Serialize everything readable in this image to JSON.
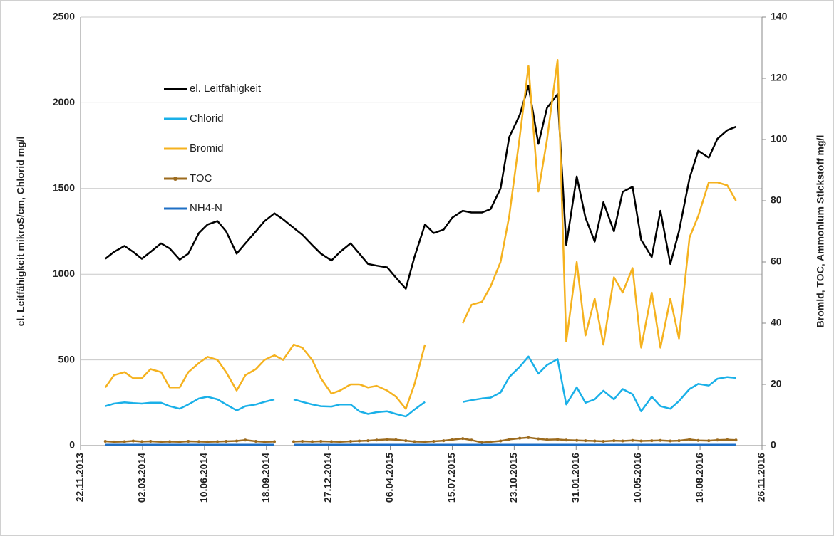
{
  "chart_data": {
    "type": "line",
    "ylabel": "el. Leitfähigkeit mikroS/cm, Chlorid mg/l",
    "y2label": "Bromid, TOC, Ammonium Stickstoff mg/l",
    "x": [
      "01.01.2014",
      "15.01.2014",
      "01.02.2014",
      "15.02.2014",
      "01.03.2014",
      "15.03.2014",
      "01.04.2014",
      "15.04.2014",
      "01.05.2014",
      "15.05.2014",
      "01.06.2014",
      "15.06.2014",
      "01.07.2014",
      "15.07.2014",
      "01.08.2014",
      "15.08.2014",
      "01.09.2014",
      "15.09.2014",
      "01.10.2014",
      "15.10.2014",
      "01.11.2014",
      "15.11.2014",
      "01.12.2014",
      "15.12.2014",
      "01.01.2015",
      "15.01.2015",
      "01.02.2015",
      "15.02.2015",
      "01.03.2015",
      "15.03.2015",
      "01.04.2015",
      "15.04.2015",
      "01.05.2015",
      "15.05.2015",
      "01.06.2015",
      "15.06.2015",
      "01.07.2015",
      "15.07.2015",
      "01.08.2015",
      "15.08.2015",
      "01.09.2015",
      "15.09.2015",
      "01.10.2015",
      "15.10.2015",
      "01.11.2015",
      "15.11.2015",
      "01.12.2015",
      "15.12.2015",
      "01.01.2016",
      "15.01.2016",
      "01.02.2016",
      "15.02.2016",
      "01.03.2016",
      "15.03.2016",
      "01.04.2016",
      "15.04.2016",
      "01.05.2016",
      "15.05.2016",
      "01.06.2016",
      "15.06.2016",
      "01.07.2016",
      "15.07.2016",
      "01.08.2016",
      "15.08.2016",
      "01.09.2016",
      "15.09.2016",
      "01.10.2016",
      "15.10.2016"
    ],
    "series": [
      {
        "name": "el. Leitfähigkeit",
        "color": "#000000",
        "axis": "y",
        "values": [
          1090,
          1130,
          1165,
          1130,
          1090,
          1130,
          1180,
          1150,
          1085,
          1120,
          1240,
          1290,
          1310,
          1250,
          1120,
          1180,
          1250,
          1310,
          1355,
          1320,
          1270,
          1230,
          1170,
          1120,
          1080,
          1130,
          1180,
          1120,
          1060,
          1050,
          1040,
          980,
          915,
          1100,
          1290,
          1240,
          1260,
          1330,
          1370,
          1360,
          1360,
          1380,
          1500,
          1800,
          1930,
          2100,
          1760,
          1970,
          2050,
          1170,
          1570,
          1330,
          1190,
          1420,
          1250,
          1480,
          1510,
          1200,
          1100,
          1370,
          1060,
          1250,
          1560,
          1720,
          1680,
          1790,
          1840,
          1860
        ]
      },
      {
        "name": "Chlorid",
        "color": "#1ab0e8",
        "axis": "y",
        "values": [
          230,
          245,
          252,
          248,
          245,
          250,
          250,
          230,
          215,
          240,
          275,
          285,
          270,
          240,
          205,
          230,
          240,
          255,
          270,
          null,
          270,
          255,
          240,
          230,
          228,
          240,
          240,
          200,
          185,
          195,
          200,
          185,
          170,
          210,
          255,
          null,
          null,
          null,
          255,
          265,
          275,
          280,
          310,
          400,
          460,
          520,
          420,
          470,
          505,
          240,
          340,
          250,
          270,
          320,
          270,
          330,
          300,
          200,
          285,
          230,
          215,
          260,
          330,
          360,
          350,
          390,
          400,
          395
        ]
      },
      {
        "name": "Bromid",
        "color": "#f5b21f",
        "axis": "y2",
        "values": [
          19,
          23,
          24,
          22,
          22,
          25,
          24,
          19,
          19,
          24,
          27,
          29,
          28,
          24,
          18,
          23,
          25,
          28,
          29.5,
          28,
          33,
          32,
          28,
          22,
          17,
          18,
          20,
          20,
          19,
          19.5,
          18,
          16,
          12,
          20,
          33,
          null,
          null,
          null,
          40,
          46,
          47,
          52,
          60,
          75,
          101,
          124,
          83,
          100,
          126,
          34,
          60,
          36,
          48,
          33,
          55,
          50,
          58,
          32,
          50,
          32,
          48,
          35,
          68,
          75,
          86,
          86,
          85,
          80
        ]
      },
      {
        "name": "TOC",
        "color": "#9c6b1e",
        "axis": "y2",
        "marker": true,
        "values": [
          1.4,
          1.2,
          1.3,
          1.5,
          1.3,
          1.4,
          1.2,
          1.3,
          1.2,
          1.4,
          1.3,
          1.2,
          1.3,
          1.4,
          1.5,
          1.8,
          1.4,
          1.2,
          1.3,
          null,
          1.3,
          1.4,
          1.3,
          1.4,
          1.3,
          1.2,
          1.4,
          1.5,
          1.6,
          1.8,
          2.0,
          1.9,
          1.6,
          1.3,
          1.2,
          1.4,
          1.6,
          1.9,
          2.3,
          1.8,
          1.0,
          1.2,
          1.5,
          2.0,
          2.4,
          2.6,
          2.2,
          1.9,
          2.0,
          1.8,
          1.7,
          1.6,
          1.5,
          1.4,
          1.6,
          1.5,
          1.7,
          1.5,
          1.6,
          1.7,
          1.5,
          1.6,
          2.0,
          1.7,
          1.6,
          1.8,
          1.9,
          1.8
        ]
      },
      {
        "name": "NH4-N",
        "color": "#1f6fc5",
        "axis": "y2",
        "values": [
          0.3,
          0.3,
          0.3,
          0.3,
          0.3,
          0.3,
          0.3,
          0.3,
          0.3,
          0.3,
          0.3,
          0.3,
          0.3,
          0.3,
          0.3,
          0.3,
          0.3,
          0.3,
          0.3,
          null,
          0.3,
          0.3,
          0.3,
          0.3,
          0.3,
          0.3,
          0.3,
          0.3,
          0.3,
          0.3,
          0.3,
          0.3,
          0.3,
          0.3,
          0.3,
          0.3,
          0.3,
          0.3,
          0.3,
          0.3,
          0.3,
          0.3,
          0.3,
          0.3,
          0.3,
          0.3,
          0.3,
          0.3,
          0.3,
          0.3,
          0.3,
          0.3,
          0.3,
          0.3,
          0.3,
          0.3,
          0.3,
          0.3,
          0.3,
          0.3,
          0.3,
          0.3,
          0.3,
          0.3,
          0.3,
          0.3,
          0.3,
          0.3
        ]
      }
    ],
    "xlim": [
      "22.11.2013",
      "26.11.2016"
    ],
    "xticks": [
      "22.11.2013",
      "02.03.2014",
      "10.06.2014",
      "18.09.2014",
      "27.12.2014",
      "06.04.2015",
      "15.07.2015",
      "23.10.2015",
      "31.01.2016",
      "10.05.2016",
      "18.08.2016",
      "26.11.2016"
    ],
    "ylim": [
      0,
      2500
    ],
    "yticks": [
      0,
      500,
      1000,
      1500,
      2000,
      2500
    ],
    "y2lim": [
      0,
      140
    ],
    "y2ticks": [
      0,
      20,
      40,
      60,
      80,
      100,
      120,
      140
    ],
    "grid": true,
    "legend": "upper left"
  }
}
